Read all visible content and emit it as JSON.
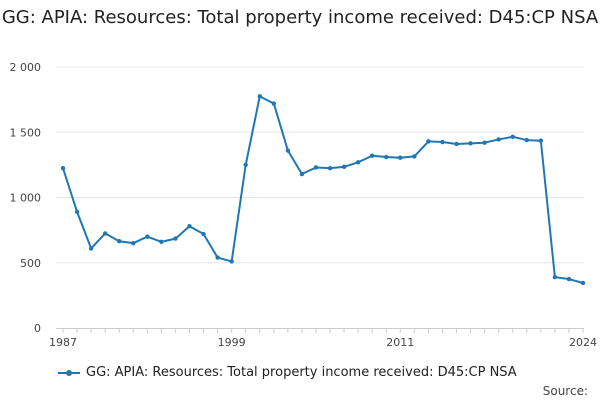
{
  "chart_data": {
    "type": "line",
    "title": "GG: APIA: Resources: Total property income received: D45:CP NSA",
    "xlabel": "",
    "ylabel": "",
    "x": [
      1987,
      1988,
      1989,
      1990,
      1991,
      1992,
      1993,
      1994,
      1995,
      1996,
      1997,
      1998,
      1999,
      2000,
      2001,
      2002,
      2003,
      2004,
      2005,
      2006,
      2007,
      2008,
      2009,
      2010,
      2011,
      2012,
      2013,
      2014,
      2015,
      2016,
      2017,
      2018,
      2019,
      2020,
      2021,
      2022,
      2023,
      2024
    ],
    "series": [
      {
        "name": "GG: APIA: Resources: Total property income received: D45:CP NSA",
        "color": "#1f77b4",
        "values": [
          1225,
          890,
          610,
          725,
          665,
          650,
          700,
          660,
          685,
          780,
          720,
          540,
          510,
          1250,
          1775,
          1720,
          1360,
          1180,
          1230,
          1225,
          1235,
          1270,
          1320,
          1310,
          1305,
          1315,
          1430,
          1425,
          1410,
          1415,
          1420,
          1445,
          1465,
          1440,
          1435,
          390,
          375,
          345
        ]
      }
    ],
    "ylim": [
      0,
      2000
    ],
    "y_ticks": [
      0,
      500,
      1000,
      1500,
      2000
    ],
    "y_tick_labels": [
      "0",
      "500",
      "1 000",
      "1 500",
      "2 000"
    ],
    "x_ticks": [
      1987,
      1999,
      2011,
      2024
    ],
    "x_tick_labels": [
      "1987",
      "1999",
      "2011",
      "2024"
    ],
    "grid": true,
    "legend_position": "bottom",
    "source_label": "Source:"
  }
}
